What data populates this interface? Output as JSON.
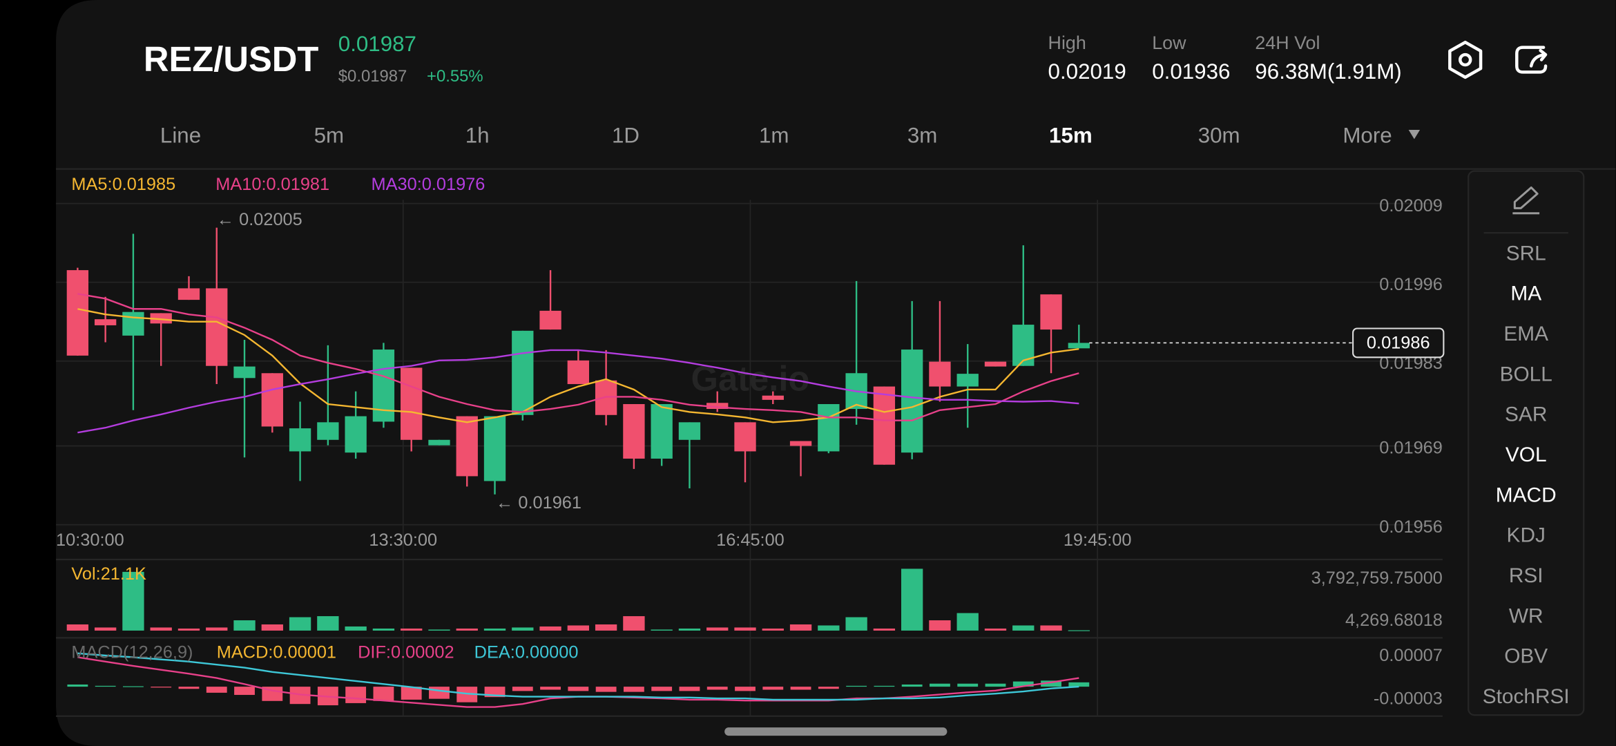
{
  "header": {
    "pair": "REZ/USDT",
    "price": "0.01987",
    "usd_price": "$0.01987",
    "change": "+0.55%",
    "stats": [
      {
        "label": "High",
        "value": "0.02019"
      },
      {
        "label": "Low",
        "value": "0.01936"
      },
      {
        "label": "24H Vol",
        "value": "96.38M(1.91M)"
      }
    ]
  },
  "tabs": [
    {
      "label": "Line"
    },
    {
      "label": "5m"
    },
    {
      "label": "1h"
    },
    {
      "label": "1D"
    },
    {
      "label": "1m"
    },
    {
      "label": "3m"
    },
    {
      "label": "15m",
      "active": true
    },
    {
      "label": "30m"
    },
    {
      "label": "More"
    }
  ],
  "indicators": [
    {
      "label": "SRL"
    },
    {
      "label": "MA",
      "active": true
    },
    {
      "label": "EMA"
    },
    {
      "label": "BOLL"
    },
    {
      "label": "SAR"
    },
    {
      "label": "VOL",
      "active": true
    },
    {
      "label": "MACD",
      "active": true
    },
    {
      "label": "KDJ"
    },
    {
      "label": "RSI"
    },
    {
      "label": "WR"
    },
    {
      "label": "OBV"
    },
    {
      "label": "StochRSI"
    }
  ],
  "chart_data": [
    {
      "type": "candlestick",
      "watermark": "Gate.io",
      "up_color": "#2ebd85",
      "down_color": "#f0506e",
      "xticks": [
        "10:30:00",
        "13:30:00",
        "16:45:00",
        "19:45:00"
      ],
      "ylim": [
        0.01955,
        0.0201
      ],
      "yticks": [
        0.02009,
        0.01996,
        0.01983,
        0.01969,
        0.01956
      ],
      "grid": true,
      "last_price": 0.01986,
      "annotations": [
        "← 0.02005",
        "← 0.01961"
      ],
      "open": [
        0.01998,
        0.019899,
        0.019872,
        0.019909,
        0.01995,
        0.01995,
        0.019802,
        0.01981,
        0.019681,
        0.0197,
        0.019679,
        0.01973,
        0.019819,
        0.019691,
        0.019739,
        0.019632,
        0.019741,
        0.019913,
        0.019831,
        0.019798,
        0.019759,
        0.019669,
        0.0197,
        0.019761,
        0.019729,
        0.019773,
        0.019698,
        0.019681,
        0.019751,
        0.019788,
        0.019679,
        0.019829,
        0.019788,
        0.019829,
        0.019822,
        0.01994,
        0.019851
      ],
      "high": [
        0.019984,
        0.019936,
        0.02004,
        0.019909,
        0.01997,
        0.02005,
        0.019865,
        0.01981,
        0.019763,
        0.019856,
        0.01978,
        0.01986,
        0.019819,
        0.0197,
        0.019739,
        0.019739,
        0.01988,
        0.01998,
        0.019848,
        0.019848,
        0.019759,
        0.019759,
        0.019729,
        0.01978,
        0.019729,
        0.01978,
        0.019698,
        0.019759,
        0.019962,
        0.019788,
        0.019929,
        0.019929,
        0.019858,
        0.019829,
        0.020021,
        0.01994,
        0.01989
      ],
      "low": [
        0.019839,
        0.019861,
        0.019749,
        0.019822,
        0.019931,
        0.019792,
        0.019671,
        0.019712,
        0.019632,
        0.019691,
        0.019669,
        0.01972,
        0.019681,
        0.019691,
        0.019623,
        0.01961,
        0.019732,
        0.019882,
        0.019792,
        0.019724,
        0.019652,
        0.019657,
        0.01962,
        0.019746,
        0.01963,
        0.019759,
        0.01964,
        0.019678,
        0.019725,
        0.019659,
        0.019668,
        0.019763,
        0.01972,
        0.019821,
        0.019822,
        0.01981,
        0.019851
      ],
      "close": [
        0.019839,
        0.019889,
        0.019911,
        0.019892,
        0.019931,
        0.019822,
        0.019821,
        0.019722,
        0.019719,
        0.019729,
        0.019739,
        0.019849,
        0.0197,
        0.0197,
        0.01964,
        0.019739,
        0.01988,
        0.019882,
        0.019792,
        0.019741,
        0.019669,
        0.019759,
        0.019729,
        0.019751,
        0.019681,
        0.019766,
        0.01969,
        0.019759,
        0.01981,
        0.019659,
        0.019849,
        0.019788,
        0.019809,
        0.019821,
        0.01989,
        0.019882,
        0.01986
      ],
      "series": [
        {
          "name": "MA5:0.01985",
          "color": "#f5b731",
          "values": [
            0.019916,
            0.019907,
            0.019902,
            0.019899,
            0.019895,
            0.019895,
            0.019873,
            0.019839,
            0.019793,
            0.019759,
            0.019754,
            0.019749,
            0.019746,
            0.019737,
            0.019729,
            0.019737,
            0.019746,
            0.019771,
            0.019788,
            0.0198,
            0.019783,
            0.019754,
            0.019746,
            0.019742,
            0.019737,
            0.019729,
            0.019732,
            0.019737,
            0.019758,
            0.019746,
            0.019754,
            0.019771,
            0.019783,
            0.019783,
            0.019831,
            0.019844,
            0.01985
          ]
        },
        {
          "name": "MA10:0.01981",
          "color": "#e8418a",
          "values": [
            0.019941,
            0.019933,
            0.019916,
            0.019916,
            0.019907,
            0.019902,
            0.019885,
            0.019865,
            0.019839,
            0.019827,
            0.019817,
            0.019805,
            0.019788,
            0.019771,
            0.019759,
            0.019749,
            0.019746,
            0.019751,
            0.019758,
            0.019771,
            0.019771,
            0.019766,
            0.019758,
            0.019754,
            0.019751,
            0.019749,
            0.019746,
            0.019737,
            0.019737,
            0.019732,
            0.019732,
            0.019749,
            0.019754,
            0.019759,
            0.01978,
            0.019797,
            0.01981
          ]
        },
        {
          "name": "MA30:0.01976",
          "color": "#b43ddf",
          "values": [
            0.019712,
            0.01972,
            0.019732,
            0.019742,
            0.019753,
            0.019763,
            0.019771,
            0.019783,
            0.019792,
            0.0198,
            0.019809,
            0.019817,
            0.019822,
            0.019831,
            0.019832,
            0.019836,
            0.019843,
            0.019848,
            0.019848,
            0.019844,
            0.019839,
            0.019834,
            0.019827,
            0.019819,
            0.01981,
            0.019803,
            0.019797,
            0.019788,
            0.01978,
            0.019775,
            0.01977,
            0.019766,
            0.019766,
            0.019764,
            0.019763,
            0.019764,
            0.01976
          ]
        }
      ]
    },
    {
      "type": "volume",
      "title": "Vol:21.1K",
      "title_color": "#f5b731",
      "ylim": [
        0,
        3792759.75
      ],
      "yticks": [
        {
          "value": 3792759.75,
          "label": "3,792,759.75000"
        },
        {
          "value": 4269.68018,
          "label": "4,269.68018"
        }
      ],
      "values": [
        379000,
        190000,
        3603000,
        190000,
        126000,
        190000,
        632000,
        379000,
        822000,
        885000,
        253000,
        126000,
        126000,
        63000,
        126000,
        126000,
        190000,
        253000,
        316000,
        379000,
        885000,
        63000,
        126000,
        190000,
        190000,
        126000,
        379000,
        316000,
        822000,
        126000,
        3792759.75,
        632000,
        1075000,
        126000,
        316000,
        316000,
        21100
      ]
    },
    {
      "type": "macd",
      "title": "MACD(12,26,9)",
      "value_legend": "MACD:0.00001",
      "value_legend_color": "#f5b731",
      "ylim": [
        -6.8e-05,
        9.86e-05
      ],
      "yticks": [
        7e-05,
        -3e-05
      ],
      "values": [
        5e-06,
        2e-06,
        1e-06,
        -2e-06,
        -5e-06,
        -1.4e-05,
        -1.9e-05,
        -3.3e-05,
        -4e-05,
        -4.3e-05,
        -3.8e-05,
        -3.3e-05,
        -3e-05,
        -2.8e-05,
        -3.6e-05,
        -2.4e-05,
        -1e-05,
        -7e-06,
        -1e-05,
        -1.2e-05,
        -1.2e-05,
        -1e-05,
        -1e-05,
        -7e-06,
        -1e-05,
        -7e-06,
        -7e-06,
        -5e-06,
        2e-06,
        2e-06,
        5e-06,
        7e-06,
        7e-06,
        7e-06,
        1.2e-05,
        1.4e-05,
        1e-05
      ],
      "series": [
        {
          "name": "DIF:0.00002",
          "color": "#e8418a",
          "values": [
            6.8e-05,
            5.8e-05,
            4.8e-05,
            3.9e-05,
            3e-05,
            2e-05,
            6e-06,
            -9e-06,
            -1.8e-05,
            -2.3e-05,
            -2.7e-05,
            -3.2e-05,
            -3.7e-05,
            -4.2e-05,
            -4.7e-05,
            -4.7e-05,
            -4e-05,
            -2.7e-05,
            -2.3e-05,
            -2.3e-05,
            -2.5e-05,
            -2.7e-05,
            -3e-05,
            -3e-05,
            -3.2e-05,
            -3.2e-05,
            -3.2e-05,
            -3.2e-05,
            -2.7e-05,
            -2.7e-05,
            -2.3e-05,
            -1.8e-05,
            -1.3e-05,
            -9e-06,
            1e-06,
            1e-05,
            2e-05
          ]
        },
        {
          "name": "DEA:0.00000",
          "color": "#3ec8d8",
          "values": [
            7.7e-05,
            7.2e-05,
            6.8e-05,
            6.3e-05,
            5.8e-05,
            5.1e-05,
            4.4e-05,
            3.4e-05,
            2.7e-05,
            2e-05,
            1.3e-05,
            6e-06,
            -1e-06,
            -9e-06,
            -1.6e-05,
            -2e-05,
            -2.3e-05,
            -2.3e-05,
            -2.3e-05,
            -2.3e-05,
            -2.3e-05,
            -2.5e-05,
            -2.5e-05,
            -2.7e-05,
            -2.7e-05,
            -3e-05,
            -3e-05,
            -3e-05,
            -3e-05,
            -2.7e-05,
            -2.7e-05,
            -2.5e-05,
            -2e-05,
            -1.6e-05,
            -1.1e-05,
            -4e-06,
            0
          ]
        }
      ]
    }
  ]
}
